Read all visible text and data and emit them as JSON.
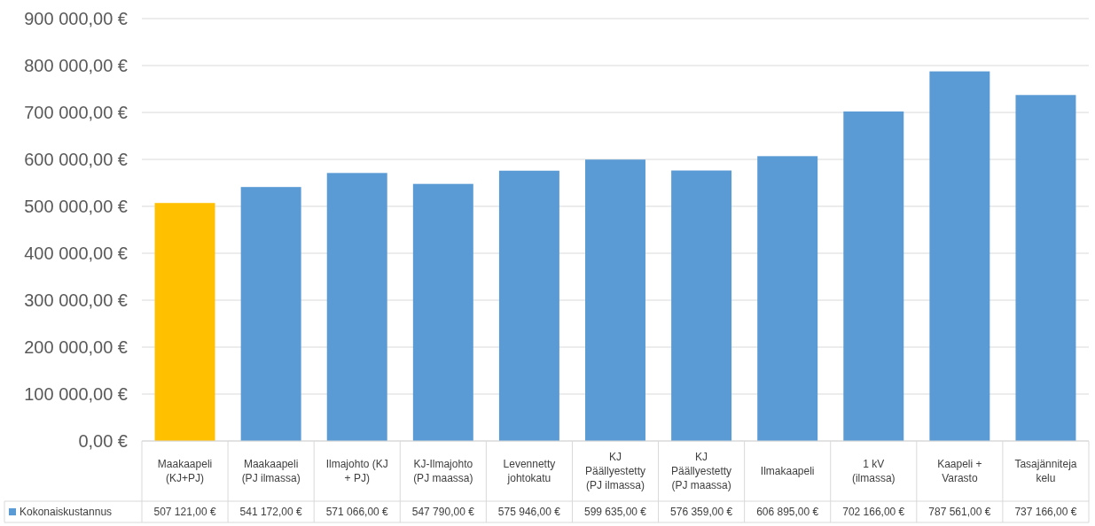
{
  "chart_data": {
    "type": "bar",
    "categories": [
      "Maakaapeli (KJ+PJ)",
      "Maakaapeli (PJ ilmassa)",
      "Ilmajohto (KJ + PJ)",
      "KJ-Ilmajohto (PJ maassa)",
      "Levennetty johtokatu",
      "KJ Päällyestetty (PJ ilmassa)",
      "KJ Päällyestetty (PJ maassa)",
      "Ilmakaapeli",
      "1 kV (ilmassa)",
      "Kaapeli + Varasto",
      "Tasajännitejakelu"
    ],
    "series": [
      {
        "name": "Kokonaiskustannus",
        "color": "#5b9bd5",
        "colors": [
          "#ffc000",
          "#5b9bd5",
          "#5b9bd5",
          "#5b9bd5",
          "#5b9bd5",
          "#5b9bd5",
          "#5b9bd5",
          "#5b9bd5",
          "#5b9bd5",
          "#5b9bd5",
          "#5b9bd5"
        ],
        "values": [
          507121,
          541172,
          571066,
          547790,
          575946,
          599635,
          576359,
          606895,
          702166,
          787561,
          737166
        ],
        "value_labels": [
          "507 121,00 €",
          "541 172,00 €",
          "571 066,00 €",
          "547 790,00 €",
          "575 946,00 €",
          "599 635,00 €",
          "576 359,00 €",
          "606 895,00 €",
          "702 166,00 €",
          "787 561,00 €",
          "737 166,00 €"
        ]
      }
    ],
    "ylim": [
      0,
      900000
    ],
    "yticks": [
      {
        "value": 0,
        "label": "0,00 €"
      },
      {
        "value": 100000,
        "label": "100 000,00 €"
      },
      {
        "value": 200000,
        "label": "200 000,00 €"
      },
      {
        "value": 300000,
        "label": "300 000,00 €"
      },
      {
        "value": 400000,
        "label": "400 000,00 €"
      },
      {
        "value": 500000,
        "label": "500 000,00 €"
      },
      {
        "value": 600000,
        "label": "600 000,00 €"
      },
      {
        "value": 700000,
        "label": "700 000,00 €"
      },
      {
        "value": 800000,
        "label": "800 000,00 €"
      },
      {
        "value": 900000,
        "label": "900 000,00 €"
      }
    ],
    "grid": "y",
    "legend": "bottom left"
  }
}
